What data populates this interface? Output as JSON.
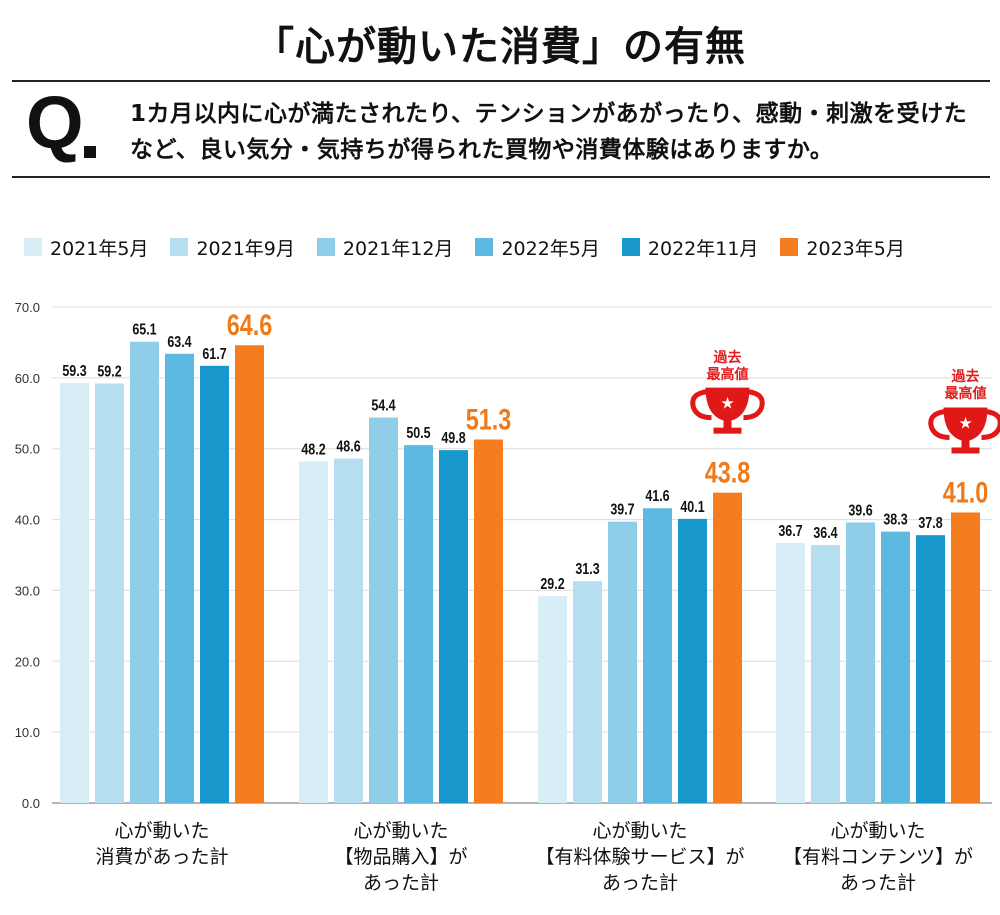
{
  "title": "「心が動いた消費」の有無",
  "question": {
    "mark": "Q",
    "text": "1カ月以内に心が満たされたり、テンションがあがったり、感動・刺激を受けたなど、良い気分・気持ちが得られた買物や消費体験はありますか。"
  },
  "badge": {
    "line1": "過去",
    "line2": "最高値"
  },
  "colors": {
    "series": [
      "#d8eef6",
      "#b5def0",
      "#8fcde8",
      "#5db9e0",
      "#1797cc",
      "#f57d1f"
    ],
    "highlight_label": "#f07a1a",
    "trophy": "#e01818"
  },
  "chart_data": {
    "type": "bar",
    "title": "「心が動いた消費」の有無",
    "ylim": [
      0,
      70
    ],
    "yticks": [
      "0.0",
      "10.0",
      "20.0",
      "30.0",
      "40.0",
      "50.0",
      "60.0",
      "70.0"
    ],
    "grid": true,
    "legend_position": "top",
    "categories": [
      [
        "心が動いた",
        "消費があった計"
      ],
      [
        "心が動いた",
        "【物品購入】が",
        "あった計"
      ],
      [
        "心が動いた",
        "【有料体験サービス】が",
        "あった計"
      ],
      [
        "心が動いた",
        "【有料コンテンツ】が",
        "あった計"
      ]
    ],
    "series": [
      {
        "name": "2021年5月",
        "values": [
          59.3,
          48.2,
          29.2,
          36.7
        ]
      },
      {
        "name": "2021年9月",
        "values": [
          59.2,
          48.6,
          31.3,
          36.4
        ]
      },
      {
        "name": "2021年12月",
        "values": [
          65.1,
          54.4,
          39.7,
          39.6
        ]
      },
      {
        "name": "2022年5月",
        "values": [
          63.4,
          50.5,
          41.6,
          38.3
        ]
      },
      {
        "name": "2022年11月",
        "values": [
          61.7,
          49.8,
          40.1,
          37.8
        ]
      },
      {
        "name": "2023年5月",
        "values": [
          64.6,
          51.3,
          43.8,
          41.0
        ]
      }
    ],
    "value_labels": [
      [
        "59.3",
        "48.2",
        "29.2",
        "36.7"
      ],
      [
        "59.2",
        "48.6",
        "31.3",
        "36.4"
      ],
      [
        "65.1",
        "54.4",
        "39.7",
        "39.6"
      ],
      [
        "63.4",
        "50.5",
        "41.6",
        "38.3"
      ],
      [
        "61.7",
        "49.8",
        "40.1",
        "37.8"
      ],
      [
        "64.6",
        "51.3",
        "43.8",
        "41.0"
      ]
    ],
    "record_high_categories": [
      2,
      3
    ]
  }
}
